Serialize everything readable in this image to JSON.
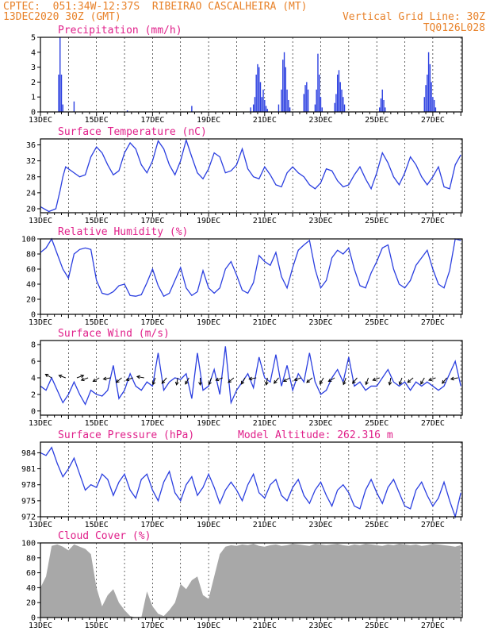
{
  "header": {
    "line1_left": "CPTEC:  051:34W-12:37S  RIBEIRAO CASCALHEIRA (MT)",
    "line2_left": "13DEC2020 30Z (GMT)",
    "line2_right": "Vertical Grid Line: 30Z",
    "line3_right": "TQ0126L028"
  },
  "colors": {
    "series": "#2b3fe0",
    "cloud": "#a8a8a8",
    "title": "#e0208a",
    "header": "#e8822a",
    "wind_arrow": "#000000"
  },
  "chart_data": [
    {
      "type": "bar",
      "title": "Precipitation (mm/h)",
      "x_start_day": 13,
      "x_tick_labels": [
        "13DEC",
        "15DEC",
        "17DEC",
        "19DEC",
        "21DEC",
        "23DEC",
        "25DEC",
        "27DEC"
      ],
      "ylim": [
        0,
        5
      ],
      "yticks": [
        0,
        1,
        2,
        3,
        4,
        5
      ],
      "x": [
        13.65,
        13.7,
        13.75,
        13.8,
        14.2,
        16.1,
        18.4,
        20.5,
        20.6,
        20.65,
        20.7,
        20.75,
        20.8,
        20.85,
        20.9,
        20.95,
        21.0,
        21.05,
        21.1,
        21.5,
        21.6,
        21.65,
        21.7,
        21.75,
        21.8,
        21.85,
        21.9,
        22.4,
        22.45,
        22.5,
        22.55,
        22.8,
        22.85,
        22.9,
        22.95,
        23.0,
        23.05,
        23.5,
        23.55,
        23.6,
        23.65,
        23.7,
        23.75,
        23.8,
        23.85,
        25.1,
        25.15,
        25.2,
        25.25,
        25.3,
        26.7,
        26.75,
        26.8,
        26.85,
        26.9,
        26.95,
        27.0,
        27.05,
        27.1
      ],
      "values": [
        2.5,
        5.0,
        2.5,
        0.5,
        0.7,
        0.1,
        0.4,
        0.3,
        0.5,
        1.0,
        2.5,
        3.2,
        3.0,
        2.0,
        1.0,
        1.5,
        0.8,
        0.4,
        0.2,
        0.5,
        1.5,
        3.5,
        4.0,
        3.0,
        1.5,
        0.8,
        0.3,
        1.2,
        1.8,
        2.0,
        1.5,
        0.5,
        1.5,
        3.9,
        2.5,
        1.0,
        0.3,
        0.6,
        1.2,
        2.5,
        2.8,
        2.0,
        1.5,
        1.0,
        0.5,
        0.3,
        0.9,
        1.5,
        0.8,
        0.3,
        1.0,
        1.8,
        2.5,
        4.0,
        3.2,
        2.0,
        1.0,
        0.8,
        0.3
      ]
    },
    {
      "type": "line",
      "title": "Surface Temperature (nC)",
      "ylim": [
        19,
        37.5
      ],
      "yticks": [
        20,
        24,
        28,
        32,
        36
      ],
      "x": [
        13.0,
        13.3,
        13.55,
        13.7,
        13.8,
        13.9,
        14.0,
        14.2,
        14.4,
        14.6,
        14.8,
        15.0,
        15.2,
        15.4,
        15.6,
        15.8,
        16.0,
        16.2,
        16.4,
        16.6,
        16.8,
        17.0,
        17.2,
        17.4,
        17.6,
        17.8,
        18.0,
        18.2,
        18.4,
        18.6,
        18.8,
        19.0,
        19.2,
        19.4,
        19.6,
        19.8,
        20.0,
        20.2,
        20.4,
        20.6,
        20.8,
        21.0,
        21.2,
        21.4,
        21.6,
        21.8,
        22.0,
        22.2,
        22.4,
        22.6,
        22.8,
        23.0,
        23.2,
        23.4,
        23.6,
        23.8,
        24.0,
        24.2,
        24.4,
        24.6,
        24.8,
        25.0,
        25.2,
        25.4,
        25.6,
        25.8,
        26.0,
        26.2,
        26.4,
        26.6,
        26.8,
        27.0,
        27.2,
        27.4,
        27.6,
        27.8,
        28.0
      ],
      "values": [
        20.5,
        19.3,
        20.0,
        24.5,
        28.0,
        30.5,
        30.0,
        29.0,
        28.0,
        28.5,
        33.0,
        35.5,
        34.0,
        31.0,
        28.5,
        29.5,
        34.0,
        36.5,
        35.0,
        31.0,
        29.0,
        32.0,
        37.0,
        35.0,
        31.0,
        28.5,
        32.0,
        37.2,
        33.0,
        29.0,
        27.5,
        30.0,
        34.0,
        33.0,
        29.0,
        29.5,
        31.0,
        35.0,
        30.0,
        28.0,
        27.5,
        30.5,
        28.5,
        26.0,
        25.5,
        29.0,
        30.5,
        29.0,
        28.0,
        26.0,
        25.0,
        26.5,
        30.0,
        29.5,
        27.0,
        25.5,
        26.0,
        28.5,
        30.5,
        27.5,
        25.0,
        29.0,
        34.0,
        31.5,
        28.0,
        26.0,
        29.0,
        33.0,
        31.0,
        28.0,
        26.0,
        28.0,
        30.5,
        25.5,
        25.0,
        31.0,
        33.5
      ]
    },
    {
      "type": "line",
      "title": "Relative Humidity (%)",
      "ylim": [
        0,
        100
      ],
      "yticks": [
        0,
        20,
        40,
        60,
        80,
        100
      ],
      "x": [
        13.0,
        13.2,
        13.4,
        13.6,
        13.8,
        14.0,
        14.2,
        14.4,
        14.6,
        14.8,
        15.0,
        15.2,
        15.4,
        15.6,
        15.8,
        16.0,
        16.2,
        16.4,
        16.6,
        16.8,
        17.0,
        17.2,
        17.4,
        17.6,
        17.8,
        18.0,
        18.2,
        18.4,
        18.6,
        18.8,
        19.0,
        19.2,
        19.4,
        19.6,
        19.8,
        20.0,
        20.2,
        20.4,
        20.6,
        20.8,
        21.0,
        21.2,
        21.4,
        21.6,
        21.8,
        22.0,
        22.2,
        22.4,
        22.6,
        22.8,
        23.0,
        23.2,
        23.4,
        23.6,
        23.8,
        24.0,
        24.2,
        24.4,
        24.6,
        24.8,
        25.0,
        25.2,
        25.4,
        25.6,
        25.8,
        26.0,
        26.2,
        26.4,
        26.6,
        26.8,
        27.0,
        27.2,
        27.4,
        27.6,
        27.8,
        28.0
      ],
      "values": [
        82,
        88,
        100,
        80,
        60,
        48,
        80,
        86,
        88,
        86,
        45,
        28,
        26,
        30,
        38,
        40,
        25,
        24,
        26,
        42,
        60,
        38,
        24,
        28,
        45,
        62,
        35,
        25,
        30,
        58,
        35,
        28,
        35,
        60,
        70,
        52,
        32,
        28,
        42,
        78,
        70,
        65,
        82,
        50,
        35,
        62,
        85,
        92,
        98,
        60,
        35,
        45,
        75,
        85,
        80,
        88,
        60,
        38,
        35,
        55,
        70,
        88,
        92,
        60,
        40,
        35,
        45,
        65,
        75,
        85,
        60,
        40,
        35,
        58,
        100,
        98
      ]
    },
    {
      "type": "line",
      "title": "Surface Wind (m/s)",
      "ylim": [
        -0.5,
        8.5
      ],
      "yticks": [
        0,
        2,
        4,
        6,
        8
      ],
      "x": [
        13.0,
        13.2,
        13.4,
        13.6,
        13.8,
        14.0,
        14.2,
        14.4,
        14.6,
        14.8,
        15.0,
        15.2,
        15.4,
        15.6,
        15.8,
        16.0,
        16.2,
        16.4,
        16.6,
        16.8,
        17.0,
        17.2,
        17.4,
        17.6,
        17.8,
        18.0,
        18.2,
        18.4,
        18.6,
        18.8,
        19.0,
        19.2,
        19.4,
        19.6,
        19.8,
        20.0,
        20.2,
        20.4,
        20.6,
        20.8,
        21.0,
        21.2,
        21.4,
        21.6,
        21.8,
        22.0,
        22.2,
        22.4,
        22.6,
        22.8,
        23.0,
        23.2,
        23.4,
        23.6,
        23.8,
        24.0,
        24.2,
        24.4,
        24.6,
        24.8,
        25.0,
        25.2,
        25.4,
        25.6,
        25.8,
        26.0,
        26.2,
        26.4,
        26.6,
        26.8,
        27.0,
        27.2,
        27.4,
        27.6,
        27.8,
        28.0
      ],
      "values": [
        3.0,
        2.5,
        4.0,
        2.5,
        1.0,
        2.0,
        3.5,
        2.0,
        0.8,
        2.5,
        2.0,
        1.8,
        2.5,
        5.5,
        1.5,
        2.5,
        4.5,
        3.0,
        2.5,
        3.5,
        3.0,
        7.0,
        2.5,
        3.5,
        4.0,
        3.8,
        4.5,
        1.5,
        7.0,
        2.5,
        3.0,
        5.0,
        2.0,
        7.8,
        1.0,
        2.5,
        3.5,
        4.5,
        2.8,
        6.5,
        4.0,
        3.5,
        6.8,
        3.0,
        5.5,
        2.5,
        4.5,
        3.5,
        7.0,
        3.5,
        2.0,
        2.5,
        4.0,
        5.0,
        3.5,
        6.5,
        3.0,
        3.5,
        2.5,
        3.0,
        3.0,
        4.0,
        5.0,
        3.5,
        3.0,
        3.5,
        2.5,
        3.5,
        3.0,
        3.5,
        3.0,
        2.5,
        3.0,
        4.5,
        6.0,
        3.0
      ],
      "arrow_x": [
        13.4,
        13.9,
        14.3,
        14.7,
        15.1,
        15.5,
        15.9,
        16.3,
        16.7,
        17.1,
        17.5,
        17.9,
        18.3,
        18.7,
        19.1,
        19.5,
        19.9,
        20.3,
        20.7,
        21.1,
        21.5,
        21.9,
        22.3,
        22.7,
        23.1,
        23.5,
        23.9,
        24.3,
        24.7,
        25.1,
        25.5,
        25.9,
        26.3,
        26.7,
        27.1,
        27.5,
        27.9
      ],
      "arrow_angle_deg": [
        150,
        160,
        20,
        200,
        210,
        190,
        220,
        200,
        170,
        250,
        230,
        260,
        240,
        270,
        250,
        200,
        220,
        240,
        190,
        260,
        230,
        210,
        200,
        220,
        240,
        210,
        250,
        230,
        250,
        200,
        260,
        250,
        220,
        240,
        200,
        230,
        190
      ]
    },
    {
      "type": "line",
      "title": "Surface Pressure (hPa)",
      "annotation": "Model Altitude: 262.316 m",
      "ylim": [
        972,
        986
      ],
      "yticks": [
        972,
        975,
        978,
        981,
        984
      ],
      "x": [
        13.0,
        13.2,
        13.4,
        13.6,
        13.8,
        14.0,
        14.2,
        14.4,
        14.6,
        14.8,
        15.0,
        15.2,
        15.4,
        15.6,
        15.8,
        16.0,
        16.2,
        16.4,
        16.6,
        16.8,
        17.0,
        17.2,
        17.4,
        17.6,
        17.8,
        18.0,
        18.2,
        18.4,
        18.6,
        18.8,
        19.0,
        19.2,
        19.4,
        19.6,
        19.8,
        20.0,
        20.2,
        20.4,
        20.6,
        20.8,
        21.0,
        21.2,
        21.4,
        21.6,
        21.8,
        22.0,
        22.2,
        22.4,
        22.6,
        22.8,
        23.0,
        23.2,
        23.4,
        23.6,
        23.8,
        24.0,
        24.2,
        24.4,
        24.6,
        24.8,
        25.0,
        25.2,
        25.4,
        25.6,
        25.8,
        26.0,
        26.2,
        26.4,
        26.6,
        26.8,
        27.0,
        27.2,
        27.4,
        27.6,
        27.8,
        28.0
      ],
      "values": [
        984,
        983.5,
        985,
        982,
        979.5,
        981,
        983,
        980,
        977,
        978,
        977.5,
        980,
        979,
        976,
        978.5,
        980,
        977,
        975.5,
        979,
        980,
        977,
        975,
        978.5,
        980.5,
        976.5,
        975,
        978,
        979.5,
        976,
        977.5,
        980,
        977.5,
        974.5,
        977,
        978.5,
        977,
        975,
        978,
        980,
        976.5,
        975.5,
        978,
        979,
        976,
        975,
        977.5,
        979,
        976,
        974.5,
        977,
        978.5,
        976,
        974,
        977,
        978,
        976.5,
        974,
        973.5,
        977,
        979,
        976.5,
        974.5,
        977.5,
        979,
        976.5,
        974,
        973.5,
        977,
        978.5,
        976,
        974,
        975.5,
        978.5,
        975,
        972,
        976.5
      ]
    },
    {
      "type": "area",
      "title": "Cloud Cover (%)",
      "ylim": [
        0,
        100
      ],
      "yticks": [
        0,
        20,
        40,
        60,
        80,
        100
      ],
      "x": [
        13.0,
        13.2,
        13.4,
        13.6,
        13.8,
        14.0,
        14.2,
        14.4,
        14.6,
        14.8,
        15.0,
        15.2,
        15.4,
        15.6,
        15.8,
        16.0,
        16.2,
        16.4,
        16.6,
        16.8,
        17.0,
        17.2,
        17.4,
        17.6,
        17.8,
        18.0,
        18.2,
        18.4,
        18.6,
        18.8,
        19.0,
        19.2,
        19.4,
        19.6,
        19.8,
        20.0,
        20.2,
        20.4,
        20.6,
        20.8,
        21.0,
        21.2,
        21.4,
        21.6,
        21.8,
        22.0,
        22.2,
        22.4,
        22.6,
        22.8,
        23.0,
        23.2,
        23.4,
        23.6,
        23.8,
        24.0,
        24.2,
        24.4,
        24.6,
        24.8,
        25.0,
        25.2,
        25.4,
        25.6,
        25.8,
        26.0,
        26.2,
        26.4,
        26.6,
        26.8,
        27.0,
        27.2,
        27.4,
        27.6,
        27.8,
        28.0
      ],
      "values": [
        40,
        55,
        96,
        98,
        95,
        90,
        98,
        95,
        92,
        85,
        40,
        15,
        30,
        38,
        20,
        10,
        2,
        0,
        0,
        35,
        15,
        5,
        2,
        10,
        20,
        45,
        38,
        50,
        55,
        30,
        25,
        55,
        85,
        95,
        97,
        96,
        98,
        97,
        99,
        96,
        95,
        97,
        98,
        96,
        97,
        99,
        98,
        97,
        96,
        99,
        98,
        97,
        98,
        99,
        97,
        96,
        98,
        97,
        99,
        98,
        97,
        96,
        98,
        97,
        99,
        98,
        97,
        98,
        96,
        97,
        99,
        98,
        97,
        96,
        95,
        97
      ]
    }
  ]
}
